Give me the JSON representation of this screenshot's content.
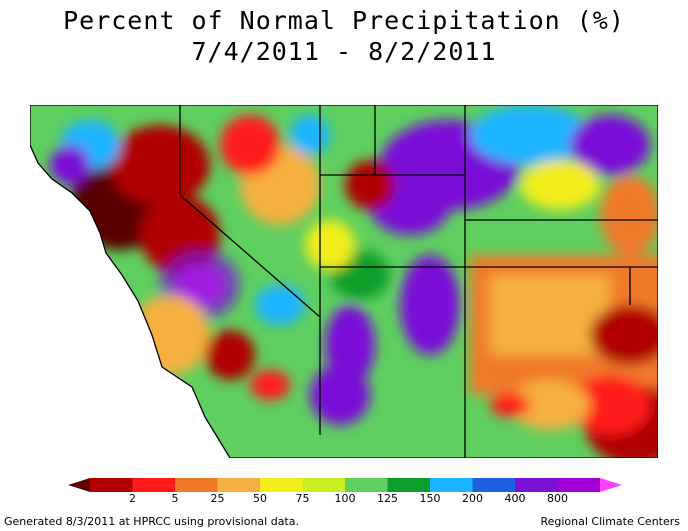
{
  "title_line1": "Percent of Normal Precipitation (%)",
  "title_line2": "7/4/2011 - 8/2/2011",
  "colorbar": {
    "ticks": [
      "2",
      "5",
      "25",
      "50",
      "75",
      "100",
      "125",
      "150",
      "200",
      "400",
      "800"
    ],
    "colors": [
      "#5a0000",
      "#b00000",
      "#ff1a1a",
      "#f07a2a",
      "#f5b040",
      "#f2ee1a",
      "#c8ee20",
      "#5fcf5f",
      "#0b9e2b",
      "#1ab4ff",
      "#2060e0",
      "#7a0fd6",
      "#a300d8",
      "#ff40ff"
    ]
  },
  "footer_left": "Generated 8/3/2011 at HPRCC using provisional data.",
  "footer_right": "Regional Climate Centers"
}
